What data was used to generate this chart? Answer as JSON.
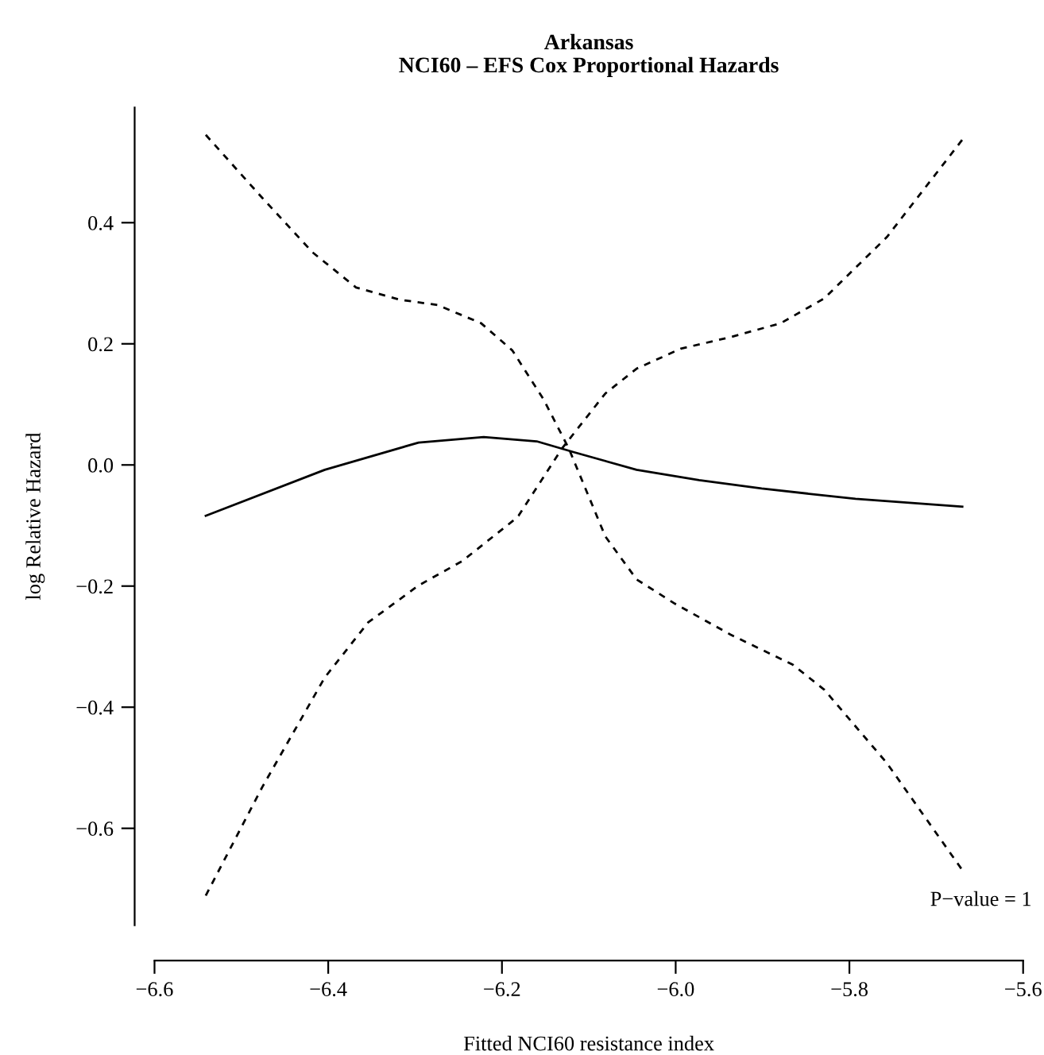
{
  "chart_data": {
    "type": "line",
    "title": "Arkansas\nNCI60 – EFS Cox Proportional Hazards",
    "xlabel": "Fitted NCI60 resistance index",
    "ylabel": "log Relative Hazard",
    "series": [
      {
        "color": "#000000",
        "line_style": "solid",
        "x": [
          -6.541,
          -6.404,
          -6.296,
          -6.221,
          -6.16,
          -6.117,
          -6.045,
          -5.973,
          -5.901,
          -5.793,
          -5.67
        ],
        "values": [
          -0.084,
          -0.008,
          0.037,
          0.046,
          0.039,
          0.021,
          -0.008,
          -0.025,
          -0.039,
          -0.056,
          -0.069
        ]
      },
      {
        "color": "#000000",
        "line_style": "dashed",
        "x": [
          -6.541,
          -6.476,
          -6.418,
          -6.368,
          -6.318,
          -6.274,
          -6.224,
          -6.188,
          -6.152,
          -6.123,
          -6.081,
          -6.045,
          -6.001,
          -5.937,
          -5.865,
          -5.829,
          -5.757,
          -5.67
        ],
        "values": [
          0.545,
          0.441,
          0.351,
          0.293,
          0.273,
          0.264,
          0.234,
          0.189,
          0.108,
          0.027,
          -0.118,
          -0.189,
          -0.229,
          -0.28,
          -0.33,
          -0.371,
          -0.492,
          -0.669
        ]
      },
      {
        "color": "#000000",
        "line_style": "dashed",
        "x": [
          -6.541,
          -6.476,
          -6.404,
          -6.354,
          -6.296,
          -6.246,
          -6.188,
          -6.181,
          -6.131,
          -6.081,
          -6.045,
          -5.994,
          -5.937,
          -5.879,
          -5.829,
          -5.757,
          -5.67
        ],
        "values": [
          -0.711,
          -0.532,
          -0.351,
          -0.26,
          -0.199,
          -0.159,
          -0.093,
          -0.084,
          0.027,
          0.118,
          0.159,
          0.192,
          0.211,
          0.234,
          0.275,
          0.376,
          0.537
        ]
      }
    ],
    "xlim": [
      -6.6,
      -5.6
    ],
    "xticks": [
      -6.6,
      -6.4,
      -6.2,
      {
        "value": -6,
        "label": "−6.0"
      },
      -5.8,
      -5.6
    ],
    "ylim": [
      -0.76,
      0.59
    ],
    "yticks": [
      -0.6,
      -0.4,
      -0.2,
      {
        "value": 0,
        "label": "0.0"
      },
      0.2,
      0.4
    ],
    "annotations": [
      "P−value = 1"
    ],
    "grid": false,
    "legend": false,
    "marker": "none"
  }
}
